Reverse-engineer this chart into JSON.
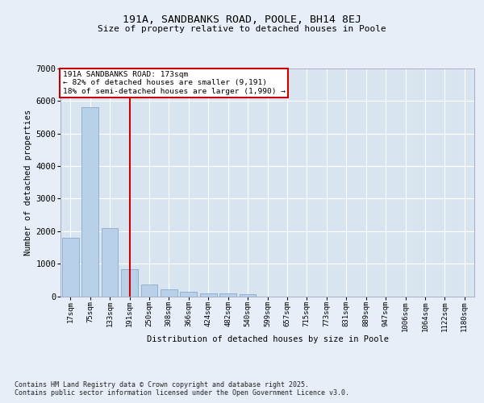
{
  "title1": "191A, SANDBANKS ROAD, POOLE, BH14 8EJ",
  "title2": "Size of property relative to detached houses in Poole",
  "xlabel": "Distribution of detached houses by size in Poole",
  "ylabel": "Number of detached properties",
  "categories": [
    "17sqm",
    "75sqm",
    "133sqm",
    "191sqm",
    "250sqm",
    "308sqm",
    "366sqm",
    "424sqm",
    "482sqm",
    "540sqm",
    "599sqm",
    "657sqm",
    "715sqm",
    "773sqm",
    "831sqm",
    "889sqm",
    "947sqm",
    "1006sqm",
    "1064sqm",
    "1122sqm",
    "1180sqm"
  ],
  "values": [
    1800,
    5820,
    2100,
    820,
    370,
    205,
    125,
    80,
    75,
    55,
    0,
    0,
    0,
    0,
    0,
    0,
    0,
    0,
    0,
    0,
    0
  ],
  "bar_color": "#b8d0e8",
  "bar_edge_color": "#88aacc",
  "vline_x_index": 3,
  "vline_color": "#cc0000",
  "annotation_text": "191A SANDBANKS ROAD: 173sqm\n← 82% of detached houses are smaller (9,191)\n18% of semi-detached houses are larger (1,990) →",
  "annotation_box_color": "#cc0000",
  "background_color": "#e8eef8",
  "plot_bg_color": "#d8e4f0",
  "grid_color": "#ffffff",
  "ylim": [
    0,
    7000
  ],
  "yticks": [
    0,
    1000,
    2000,
    3000,
    4000,
    5000,
    6000,
    7000
  ],
  "footnote1": "Contains HM Land Registry data © Crown copyright and database right 2025.",
  "footnote2": "Contains public sector information licensed under the Open Government Licence v3.0."
}
